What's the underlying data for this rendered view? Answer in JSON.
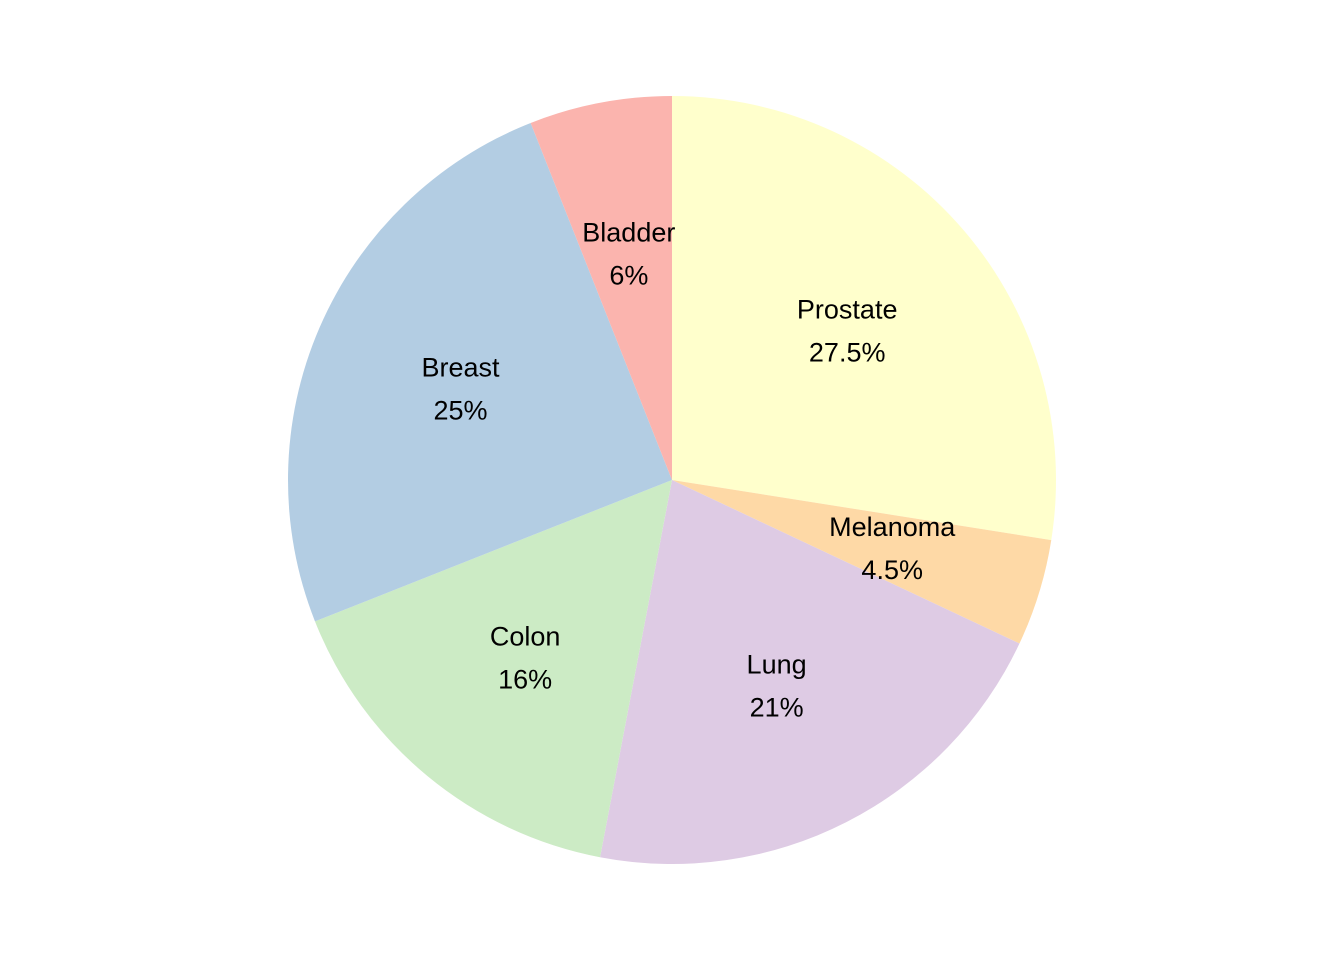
{
  "chart_data": {
    "type": "pie",
    "start": "12 o'clock",
    "direction": "clockwise",
    "slices": [
      {
        "label": "Prostate",
        "value": 27.5,
        "value_label": "27.5%",
        "color": "#FFFFCC"
      },
      {
        "label": "Melanoma",
        "value": 4.5,
        "value_label": "4.5%",
        "color": "#FED9A6"
      },
      {
        "label": "Lung",
        "value": 21,
        "value_label": "21%",
        "color": "#DECBE4"
      },
      {
        "label": "Colon",
        "value": 16,
        "value_label": "16%",
        "color": "#CCEBC5"
      },
      {
        "label": "Breast",
        "value": 25,
        "value_label": "25%",
        "color": "#B3CDE3"
      },
      {
        "label": "Bladder",
        "value": 6,
        "value_label": "6%",
        "color": "#FBB4AE"
      }
    ]
  }
}
